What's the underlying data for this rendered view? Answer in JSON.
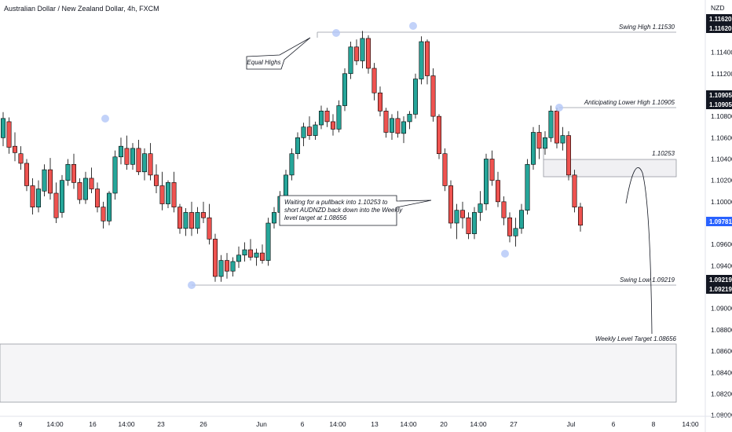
{
  "header": {
    "title": "Australian Dollar / New Zealand Dollar, 4h, FXCM",
    "currency": "NZD"
  },
  "colors": {
    "bull": "#26a69a",
    "bear": "#ef5350",
    "border": "#000000",
    "level_line": "#9598a1",
    "zone_fill": "#f0f0f3",
    "marker": "#b3c7f7",
    "tag_dark": "#131722",
    "tag_current": "#2962ff"
  },
  "chart_data": {
    "type": "candlestick",
    "y_axis_label": "NZD",
    "ylim": [
      1.0799,
      1.1189
    ],
    "y_ticks": [
      "1.11400",
      "1.11200",
      "1.10800",
      "1.10600",
      "1.10400",
      "1.10200",
      "1.10000",
      "1.09600",
      "1.09400",
      "1.09000",
      "1.08800",
      "1.08600",
      "1.08400",
      "1.08200",
      "1.08000"
    ],
    "x_ticks": [
      "9",
      "14:00",
      "16",
      "14:00",
      "23",
      "26",
      "Jun",
      "6",
      "14:00",
      "13",
      "14:00",
      "20",
      "14:00",
      "27",
      "Jul",
      "6",
      "8",
      "14:00"
    ],
    "price_tags": [
      {
        "label": "1.11620",
        "value": 1.1162,
        "style": "dark"
      },
      {
        "label": "1.11620",
        "value": 1.1162,
        "style": "dark"
      },
      {
        "label": "1.10905",
        "value": 1.10905,
        "style": "dark"
      },
      {
        "label": "1.10905",
        "value": 1.10905,
        "style": "dark"
      },
      {
        "label": "1.09781",
        "value": 1.09781,
        "style": "current"
      },
      {
        "label": "1.09219",
        "value": 1.09219,
        "style": "dark"
      },
      {
        "label": "1.09219",
        "value": 1.09219,
        "style": "dark"
      }
    ],
    "levels": [
      {
        "label": "Swing High 1.11530",
        "value": 1.1153
      },
      {
        "label": "Anticipating Lower High 1.10905",
        "value": 1.10905
      },
      {
        "label": "1.10253",
        "value": 1.10253
      },
      {
        "label": "Swing Low 1.09219",
        "value": 1.09219
      },
      {
        "label": "Weekly Level Target 1.08656",
        "value": 1.08656
      }
    ],
    "zones": [
      {
        "name": "resistance-zone",
        "top": 1.104,
        "bottom": 1.1026
      },
      {
        "name": "weekly-target-zone",
        "top": 1.08656,
        "bottom": 1.0811
      }
    ],
    "annotations": {
      "equal_highs": "Equal Highs",
      "plan_lines": [
        "Waiting for a pullback into 1.10253 to",
        "short AUDNZD back down into the Weekly",
        "level target at 1.08656"
      ]
    },
    "candles": [
      [
        1.106,
        1.1084,
        1.1052,
        1.1078
      ],
      [
        1.1075,
        1.1079,
        1.1045,
        1.1051
      ],
      [
        1.1052,
        1.1065,
        1.1038,
        1.1046
      ],
      [
        1.1045,
        1.1052,
        1.103,
        1.1036
      ],
      [
        1.1036,
        1.104,
        1.101,
        1.1015
      ],
      [
        1.1015,
        1.1022,
        1.0988,
        1.0995
      ],
      [
        1.0995,
        1.102,
        1.099,
        1.1012
      ],
      [
        1.101,
        1.1035,
        1.1005,
        1.103
      ],
      [
        1.103,
        1.1041,
        1.1002,
        1.1008
      ],
      [
        1.1008,
        1.1018,
        1.098,
        1.0985
      ],
      [
        1.099,
        1.1025,
        1.0985,
        1.102
      ],
      [
        1.102,
        1.104,
        1.1015,
        1.1035
      ],
      [
        1.1035,
        1.1045,
        1.1012,
        1.1018
      ],
      [
        1.1018,
        1.1022,
        1.0998,
        1.1002
      ],
      [
        1.1002,
        1.1028,
        1.0998,
        1.1022
      ],
      [
        1.1022,
        1.1032,
        1.1008,
        1.1012
      ],
      [
        1.1012,
        1.1018,
        1.099,
        1.0995
      ],
      [
        1.0995,
        1.1,
        1.0975,
        1.0982
      ],
      [
        1.0982,
        1.101,
        1.0978,
        1.1008
      ],
      [
        1.1008,
        1.1048,
        1.1002,
        1.1042
      ],
      [
        1.1042,
        1.106,
        1.1035,
        1.1052
      ],
      [
        1.105,
        1.1062,
        1.103,
        1.1035
      ],
      [
        1.1035,
        1.1055,
        1.103,
        1.105
      ],
      [
        1.105,
        1.1058,
        1.1025,
        1.1028
      ],
      [
        1.1028,
        1.105,
        1.102,
        1.1045
      ],
      [
        1.1045,
        1.1055,
        1.102,
        1.1025
      ],
      [
        1.1025,
        1.1035,
        1.1008,
        1.1015
      ],
      [
        1.1015,
        1.1028,
        1.0992,
        1.0998
      ],
      [
        1.0998,
        1.102,
        1.0994,
        1.1018
      ],
      [
        1.1018,
        1.1028,
        1.099,
        1.0995
      ],
      [
        1.0995,
        1.0998,
        1.097,
        1.0975
      ],
      [
        1.0975,
        1.0994,
        1.0968,
        1.099
      ],
      [
        1.099,
        1.1,
        1.0968,
        1.0975
      ],
      [
        1.0975,
        1.0995,
        1.097,
        1.099
      ],
      [
        1.099,
        1.1,
        1.098,
        1.0985
      ],
      [
        1.0985,
        1.0998,
        1.096,
        1.0965
      ],
      [
        1.0965,
        1.097,
        1.0925,
        1.093
      ],
      [
        1.093,
        1.095,
        1.0925,
        1.0945
      ],
      [
        1.0945,
        1.0952,
        1.0928,
        1.0935
      ],
      [
        1.0935,
        1.0948,
        1.093,
        1.0944
      ],
      [
        1.0944,
        1.0958,
        1.0938,
        1.095
      ],
      [
        1.095,
        1.0962,
        1.0944,
        1.0955
      ],
      [
        1.0955,
        1.0965,
        1.0945,
        1.0948
      ],
      [
        1.0948,
        1.0956,
        1.094,
        1.0952
      ],
      [
        1.0952,
        1.096,
        1.0942,
        1.0945
      ],
      [
        1.0945,
        1.0985,
        1.094,
        1.098
      ],
      [
        1.098,
        1.0995,
        1.0975,
        1.099
      ],
      [
        1.099,
        1.101,
        1.0985,
        1.1005
      ],
      [
        1.1005,
        1.103,
        1.1,
        1.1025
      ],
      [
        1.1025,
        1.105,
        1.102,
        1.1045
      ],
      [
        1.1045,
        1.1065,
        1.104,
        1.106
      ],
      [
        1.106,
        1.1074,
        1.1052,
        1.107
      ],
      [
        1.107,
        1.108,
        1.1058,
        1.1062
      ],
      [
        1.1062,
        1.1075,
        1.1058,
        1.1072
      ],
      [
        1.1072,
        1.109,
        1.1068,
        1.1085
      ],
      [
        1.1085,
        1.1088,
        1.107,
        1.1075
      ],
      [
        1.1075,
        1.1082,
        1.1062,
        1.1068
      ],
      [
        1.1068,
        1.1095,
        1.1065,
        1.109
      ],
      [
        1.109,
        1.1125,
        1.1085,
        1.112
      ],
      [
        1.112,
        1.115,
        1.1115,
        1.1145
      ],
      [
        1.1145,
        1.1152,
        1.1128,
        1.1132
      ],
      [
        1.1132,
        1.116,
        1.1125,
        1.1153
      ],
      [
        1.1153,
        1.1156,
        1.112,
        1.1125
      ],
      [
        1.1125,
        1.113,
        1.1095,
        1.1102
      ],
      [
        1.1102,
        1.1108,
        1.108,
        1.1085
      ],
      [
        1.1085,
        1.1088,
        1.106,
        1.1065
      ],
      [
        1.1065,
        1.1082,
        1.1058,
        1.1078
      ],
      [
        1.1078,
        1.1085,
        1.106,
        1.1064
      ],
      [
        1.1064,
        1.108,
        1.1055,
        1.1075
      ],
      [
        1.1075,
        1.1085,
        1.1068,
        1.1082
      ],
      [
        1.1082,
        1.112,
        1.1078,
        1.1115
      ],
      [
        1.1115,
        1.1155,
        1.111,
        1.115
      ],
      [
        1.115,
        1.1152,
        1.111,
        1.1118
      ],
      [
        1.1118,
        1.1125,
        1.1075,
        1.108
      ],
      [
        1.108,
        1.1082,
        1.104,
        1.1045
      ],
      [
        1.1045,
        1.105,
        1.101,
        1.1015
      ],
      [
        1.1015,
        1.102,
        1.0975,
        1.098
      ],
      [
        1.098,
        1.0998,
        1.0965,
        1.0992
      ],
      [
        1.0992,
        1.1,
        1.0975,
        1.0985
      ],
      [
        1.0985,
        1.099,
        1.0965,
        1.097
      ],
      [
        1.097,
        1.0995,
        1.0965,
        1.099
      ],
      [
        1.099,
        1.101,
        1.0982,
        1.0998
      ],
      [
        1.0998,
        1.1045,
        1.0992,
        1.104
      ],
      [
        1.104,
        1.1048,
        1.1015,
        1.102
      ],
      [
        1.102,
        1.1028,
        1.0995,
        1.1
      ],
      [
        1.1,
        1.1005,
        1.0978,
        1.0985
      ],
      [
        1.0985,
        1.099,
        1.0962,
        1.0968
      ],
      [
        1.0968,
        1.0985,
        1.0958,
        1.0975
      ],
      [
        1.0975,
        1.0998,
        1.097,
        1.0992
      ],
      [
        1.0992,
        1.104,
        1.0988,
        1.1035
      ],
      [
        1.1035,
        1.107,
        1.103,
        1.1065
      ],
      [
        1.1065,
        1.1072,
        1.104,
        1.105
      ],
      [
        1.105,
        1.1066,
        1.1044,
        1.106
      ],
      [
        1.106,
        1.109,
        1.1056,
        1.1085
      ],
      [
        1.1085,
        1.1088,
        1.105,
        1.1055
      ],
      [
        1.1055,
        1.107,
        1.1048,
        1.1062
      ],
      [
        1.1062,
        1.1066,
        1.102,
        1.1025
      ],
      [
        1.1025,
        1.103,
        1.099,
        1.0995
      ],
      [
        1.0995,
        1.0999,
        1.0972,
        1.0978
      ]
    ]
  }
}
